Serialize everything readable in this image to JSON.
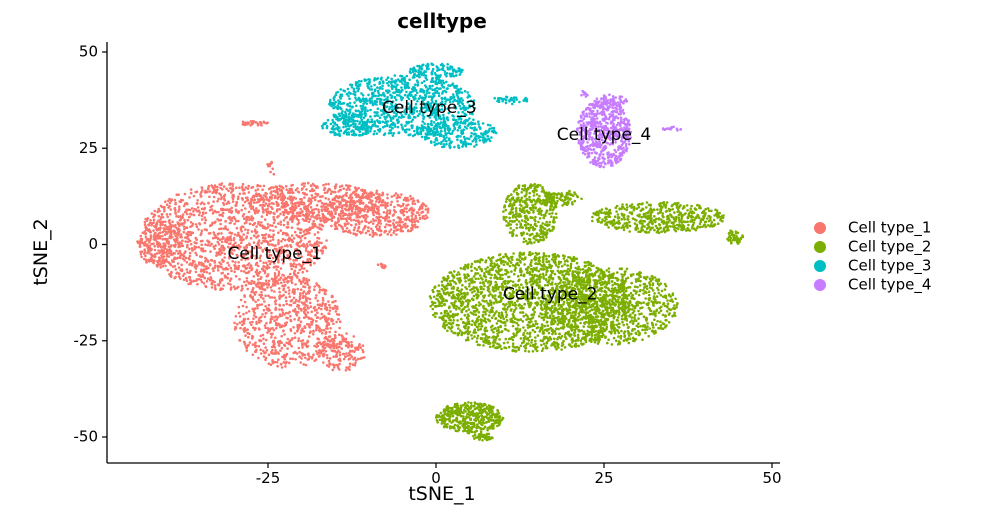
{
  "chart_data": {
    "type": "scatter",
    "title": "celltype",
    "xlabel": "tSNE_1",
    "ylabel": "tSNE_2",
    "xlim": [
      -48,
      51
    ],
    "ylim": [
      -56,
      52
    ],
    "x_ticks": [
      -25,
      0,
      25,
      50
    ],
    "y_ticks": [
      50,
      25,
      0,
      -25,
      -50
    ],
    "grid": false,
    "legend_position": "right",
    "series": [
      {
        "name": "Cell type_1",
        "color": "#F8766D",
        "label": "Cell type_1",
        "label_pos": [
          -24,
          -2.5
        ],
        "regions": [
          {
            "cx": -30,
            "cy": 2,
            "rx": 14,
            "ry": 14,
            "n": 1500
          },
          {
            "cx": -22,
            "cy": -20,
            "rx": 8,
            "ry": 12,
            "n": 700
          },
          {
            "cx": -9,
            "cy": 8,
            "rx": 8,
            "ry": 6,
            "n": 500
          },
          {
            "cx": -18,
            "cy": 11,
            "rx": 10,
            "ry": 5,
            "n": 400
          },
          {
            "cx": -41,
            "cy": 0,
            "rx": 3.5,
            "ry": 6,
            "n": 180
          },
          {
            "cx": -14,
            "cy": -28,
            "rx": 3.5,
            "ry": 5,
            "n": 140
          },
          {
            "cx": -27,
            "cy": 31.5,
            "rx": 2.5,
            "ry": 0.6,
            "n": 30
          },
          {
            "cx": -24.5,
            "cy": 20,
            "rx": 0.8,
            "ry": 2,
            "n": 12
          },
          {
            "cx": -8,
            "cy": -5,
            "rx": 0.8,
            "ry": 1.2,
            "n": 10
          }
        ]
      },
      {
        "name": "Cell type_2",
        "color": "#7CAE00",
        "label": "Cell type_2",
        "label_pos": [
          17,
          -13
        ],
        "regions": [
          {
            "cx": 14,
            "cy": -15,
            "rx": 15,
            "ry": 13,
            "n": 2000
          },
          {
            "cx": 26,
            "cy": -16,
            "rx": 10,
            "ry": 10,
            "n": 900
          },
          {
            "cx": 33,
            "cy": 7,
            "rx": 10,
            "ry": 4,
            "n": 500
          },
          {
            "cx": 14,
            "cy": 8,
            "rx": 4,
            "ry": 8,
            "n": 400
          },
          {
            "cx": 19,
            "cy": 12,
            "rx": 3,
            "ry": 2,
            "n": 80
          },
          {
            "cx": 44.5,
            "cy": 2,
            "rx": 1.2,
            "ry": 2,
            "n": 40
          },
          {
            "cx": 5,
            "cy": -45,
            "rx": 5,
            "ry": 4,
            "n": 400
          },
          {
            "cx": 7,
            "cy": -50,
            "rx": 1.5,
            "ry": 1,
            "n": 40
          }
        ]
      },
      {
        "name": "Cell type_3",
        "color": "#00BFC4",
        "label": "Cell type_3",
        "label_pos": [
          -1,
          35.5
        ],
        "regions": [
          {
            "cx": -5,
            "cy": 36,
            "rx": 11,
            "ry": 8,
            "n": 900
          },
          {
            "cx": 3,
            "cy": 29,
            "rx": 6,
            "ry": 4,
            "n": 250
          },
          {
            "cx": -13,
            "cy": 31,
            "rx": 4,
            "ry": 3,
            "n": 150
          },
          {
            "cx": 11,
            "cy": 37.5,
            "rx": 3,
            "ry": 1,
            "n": 40
          },
          {
            "cx": 0,
            "cy": 45,
            "rx": 4,
            "ry": 2,
            "n": 120
          }
        ]
      },
      {
        "name": "Cell type_4",
        "color": "#C77CFF",
        "label": "Cell type_4",
        "label_pos": [
          25,
          28.5
        ],
        "regions": [
          {
            "cx": 25,
            "cy": 29,
            "rx": 4,
            "ry": 9,
            "n": 600
          },
          {
            "cx": 26,
            "cy": 37,
            "rx": 2.5,
            "ry": 2,
            "n": 60
          },
          {
            "cx": 35,
            "cy": 30,
            "rx": 1.5,
            "ry": 0.7,
            "n": 15
          },
          {
            "cx": 22,
            "cy": 39,
            "rx": 0.6,
            "ry": 1,
            "n": 8
          }
        ]
      }
    ]
  }
}
